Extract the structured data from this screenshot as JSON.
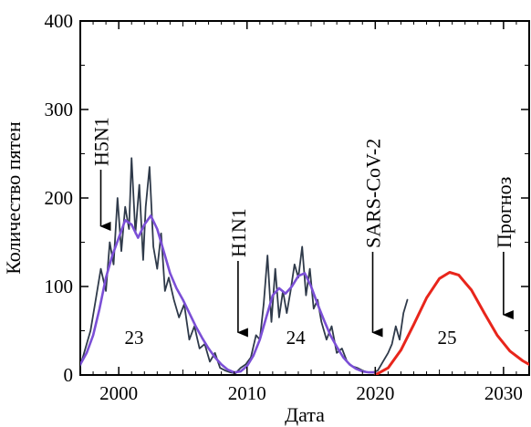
{
  "chart_data": {
    "type": "line",
    "title": "",
    "xlabel": "Дата",
    "ylabel": "Количество пятен",
    "xlim": [
      1997,
      2032
    ],
    "ylim": [
      0,
      400
    ],
    "x_ticks": [
      "2000",
      "2010",
      "2020",
      "2030"
    ],
    "y_ticks": [
      "0",
      "100",
      "200",
      "300",
      "400"
    ],
    "grid": false,
    "series": [
      {
        "role": "monthly",
        "color": "#2f3a4a",
        "x": [
          1997.0,
          1997.4,
          1997.8,
          1998.2,
          1998.6,
          1999.0,
          1999.3,
          1999.6,
          1999.9,
          2000.2,
          2000.5,
          2000.8,
          2001.0,
          2001.3,
          2001.6,
          2001.9,
          2002.1,
          2002.4,
          2002.7,
          2003.0,
          2003.3,
          2003.6,
          2003.9,
          2004.3,
          2004.7,
          2005.1,
          2005.5,
          2005.9,
          2006.3,
          2006.7,
          2007.1,
          2007.5,
          2007.9,
          2008.3,
          2008.7,
          2009.1,
          2009.5,
          2009.9,
          2010.3,
          2010.7,
          2011.0,
          2011.3,
          2011.6,
          2011.9,
          2012.2,
          2012.5,
          2012.8,
          2013.1,
          2013.4,
          2013.7,
          2014.0,
          2014.3,
          2014.6,
          2014.9,
          2015.2,
          2015.5,
          2015.8,
          2016.2,
          2016.6,
          2017.0,
          2017.4,
          2017.8,
          2018.2,
          2018.6,
          2019.0,
          2019.4,
          2019.8,
          2020.2,
          2020.6,
          2021.0,
          2021.3,
          2021.6,
          2021.9,
          2022.2,
          2022.5
        ],
        "values": [
          10,
          30,
          50,
          85,
          120,
          95,
          150,
          125,
          200,
          140,
          190,
          165,
          245,
          160,
          215,
          130,
          190,
          235,
          145,
          120,
          160,
          95,
          110,
          85,
          65,
          80,
          40,
          55,
          30,
          35,
          15,
          25,
          8,
          5,
          3,
          2,
          8,
          12,
          20,
          45,
          40,
          80,
          135,
          60,
          120,
          65,
          95,
          70,
          95,
          125,
          110,
          145,
          90,
          120,
          75,
          85,
          60,
          40,
          55,
          25,
          30,
          15,
          10,
          8,
          5,
          3,
          3,
          5,
          15,
          25,
          35,
          55,
          40,
          70,
          85
        ]
      },
      {
        "role": "smoothed",
        "color": "#7b4fd6",
        "x": [
          1997.0,
          1997.5,
          1998.0,
          1998.5,
          1999.0,
          1999.5,
          2000.0,
          2000.5,
          2001.0,
          2001.5,
          2002.0,
          2002.5,
          2003.0,
          2003.5,
          2004.0,
          2004.5,
          2005.0,
          2005.5,
          2006.0,
          2006.5,
          2007.0,
          2007.5,
          2008.0,
          2008.5,
          2009.0,
          2009.5,
          2010.0,
          2010.5,
          2011.0,
          2011.5,
          2012.0,
          2012.5,
          2013.0,
          2013.5,
          2014.0,
          2014.5,
          2015.0,
          2015.5,
          2016.0,
          2016.5,
          2017.0,
          2017.5,
          2018.0,
          2018.5,
          2019.0,
          2019.5,
          2020.0
        ],
        "values": [
          12,
          25,
          45,
          75,
          110,
          135,
          155,
          175,
          170,
          155,
          170,
          180,
          165,
          140,
          115,
          98,
          85,
          70,
          55,
          42,
          30,
          20,
          12,
          6,
          3,
          4,
          10,
          22,
          40,
          65,
          90,
          98,
          92,
          100,
          112,
          115,
          100,
          80,
          62,
          45,
          32,
          20,
          12,
          7,
          4,
          3,
          3
        ]
      },
      {
        "role": "forecast",
        "name": "Прогноз",
        "color": "#e8251b",
        "x": [
          2020.0,
          2021.0,
          2022.0,
          2023.0,
          2024.0,
          2025.0,
          2025.8,
          2026.5,
          2027.5,
          2028.5,
          2029.5,
          2030.5,
          2031.5,
          2032.0
        ],
        "values": [
          0,
          8,
          28,
          57,
          87,
          109,
          116,
          113,
          96,
          70,
          45,
          27,
          16,
          12
        ]
      }
    ],
    "annotations": [
      {
        "text": "H5N1",
        "x": 1998.6,
        "arrow_to": 168
      },
      {
        "text": "H1N1",
        "x": 2009.3,
        "arrow_to": 48
      },
      {
        "text": "SARS-CoV-2",
        "x": 2019.8,
        "arrow_to": 48
      },
      {
        "text": "Прогноз",
        "x": 2030.0,
        "arrow_to": 68
      }
    ],
    "cycle_labels": [
      {
        "text": "23",
        "x": 2001.2,
        "y": 35
      },
      {
        "text": "24",
        "x": 2013.8,
        "y": 35
      },
      {
        "text": "25",
        "x": 2025.6,
        "y": 35
      }
    ]
  }
}
